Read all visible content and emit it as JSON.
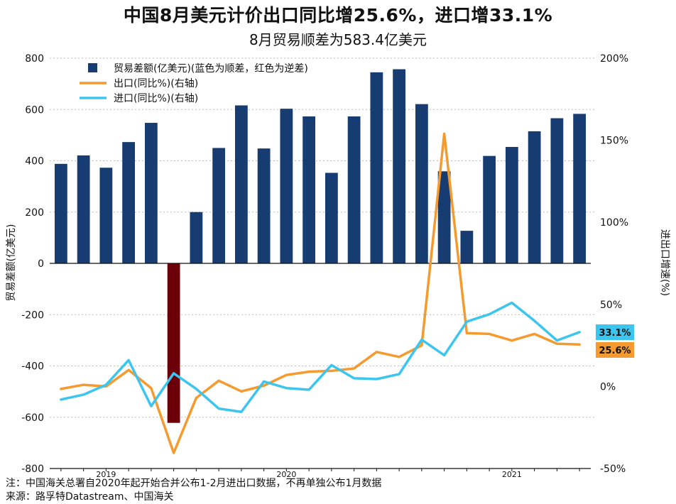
{
  "title": "中国8月美元计价出口同比增25.6%，进口增33.1%",
  "subtitle": "8月贸易顺差为583.4亿美元",
  "note": "注：中国海关总署自2020年起开始合并公布1-2月进出口数据，不再单独公布1月数据",
  "source": "来源：路孚特Datastream、中国海关",
  "chart_data": {
    "type": "bar+line",
    "ylabel_left": "贸易差额(亿美元)",
    "ylabel_right": "进出口增速(%)",
    "left_axis": {
      "min": -800,
      "max": 800,
      "ticks": [
        "800",
        "600",
        "400",
        "200",
        "0",
        "-200",
        "-400",
        "-600",
        "-800"
      ]
    },
    "right_axis": {
      "min": -50,
      "max": 200,
      "ticks": [
        "200%",
        "150%",
        "100%",
        "50%",
        "0%",
        "-50%"
      ]
    },
    "x_year_labels": [
      {
        "label": "2019",
        "index": 2
      },
      {
        "label": "2020",
        "index": 10
      },
      {
        "label": "2021",
        "index": 20
      }
    ],
    "legend": [
      {
        "name": "贸易差额(亿美元)(蓝色为顺差，红色为逆差)",
        "kind": "bar",
        "color": "#163c72"
      },
      {
        "name": "出口(同比%)(右轴)",
        "kind": "line",
        "color": "#f59a2e"
      },
      {
        "name": "进口(同比%)(右轴)",
        "kind": "line",
        "color": "#3cc5ee"
      }
    ],
    "colors": {
      "surplus": "#163c72",
      "deficit": "#6b0008",
      "exports": "#f59a2e",
      "imports": "#3cc5ee"
    },
    "trade_balance": [
      388,
      421,
      373,
      473,
      548,
      -622,
      200,
      450,
      616,
      448,
      603,
      573,
      353,
      573,
      745,
      757,
      621,
      359,
      127,
      419,
      454,
      515,
      566,
      583
    ],
    "exports": [
      -1.5,
      1.0,
      0.0,
      10.0,
      -1.0,
      -40.5,
      -7.0,
      3.5,
      -3.0,
      0.5,
      7.0,
      9.0,
      9.5,
      11.0,
      21.0,
      18.0,
      25.0,
      154.0,
      32.5,
      32.0,
      28.0,
      32.0,
      26.0,
      25.6
    ],
    "imports": [
      -8.0,
      -5.0,
      1.0,
      16.0,
      -12.0,
      8.0,
      -1.5,
      -13.5,
      -15.5,
      3.0,
      -1.0,
      -2.0,
      13.0,
      5.0,
      4.5,
      7.5,
      28.5,
      19.0,
      39.5,
      44.0,
      51.0,
      40.0,
      28.0,
      33.1
    ],
    "end_labels": {
      "imports": "33.1%",
      "exports": "25.6%"
    }
  }
}
